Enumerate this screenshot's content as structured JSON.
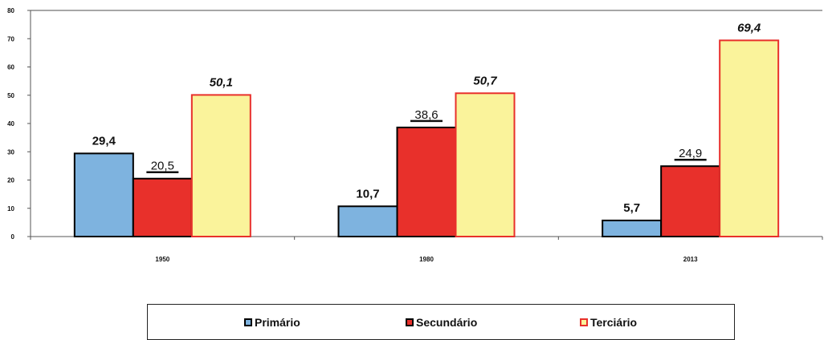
{
  "chart_data": {
    "type": "bar",
    "categories": [
      "1950",
      "1980",
      "2013"
    ],
    "series": [
      {
        "name": "Primário",
        "values": [
          29.4,
          10.7,
          5.7
        ],
        "value_labels": [
          "29,4",
          "10,7",
          "5,7"
        ],
        "fill": "#7eb3df",
        "stroke": "#000000",
        "label_style": "bold"
      },
      {
        "name": "Secundário",
        "values": [
          20.5,
          38.6,
          24.9
        ],
        "value_labels": [
          "20,5",
          "38,6",
          "24,9"
        ],
        "fill": "#e8302b",
        "stroke": "#000000",
        "label_style": "underline"
      },
      {
        "name": "Terciário",
        "values": [
          50.1,
          50.7,
          69.4
        ],
        "value_labels": [
          "50,1",
          "50,7",
          "69,4"
        ],
        "fill": "#faf39b",
        "stroke": "#e8302b",
        "label_style": "bold-italic"
      }
    ],
    "ylim": [
      0,
      80
    ],
    "yticks": [
      0,
      10,
      20,
      30,
      40,
      50,
      60,
      70,
      80
    ],
    "title": "",
    "xlabel": "",
    "ylabel": "",
    "grid": false,
    "legend_position": "bottom"
  }
}
